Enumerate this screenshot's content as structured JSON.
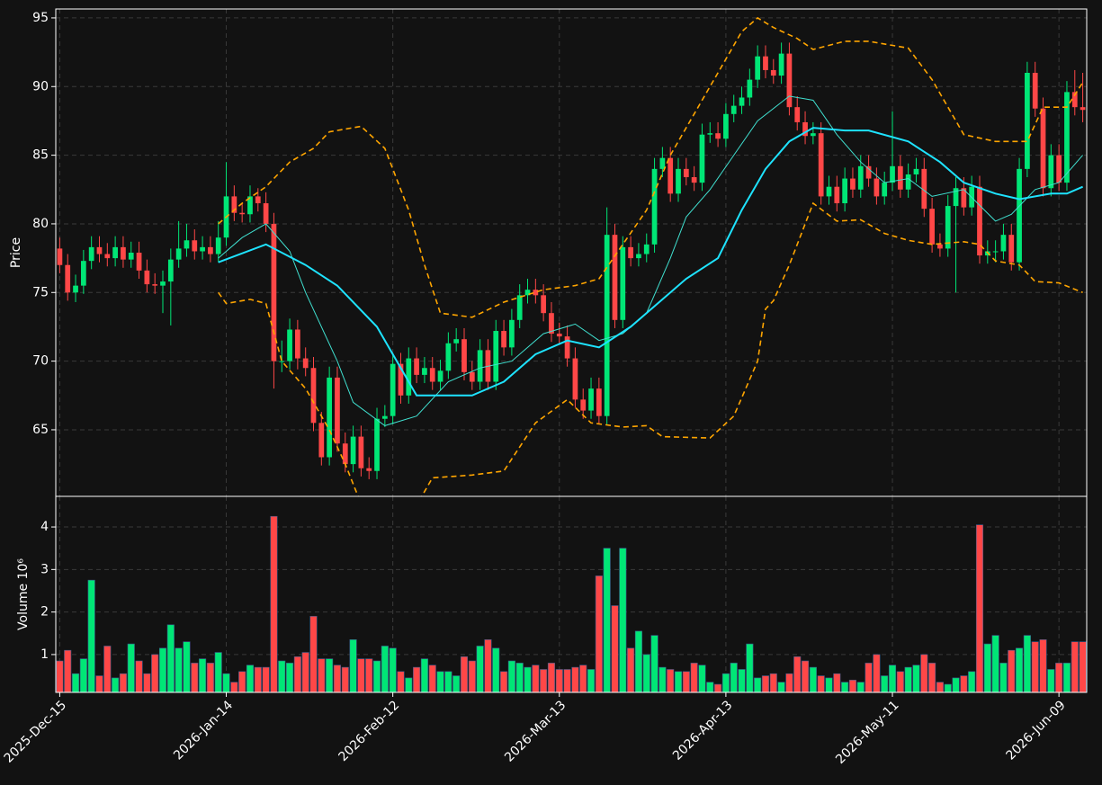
{
  "chart_data": [
    {
      "type": "candlestick",
      "ylabel": "Price",
      "xlim": [
        -0.5,
        129.5
      ],
      "ylim": [
        60.15,
        95.65
      ],
      "yticks": [
        65,
        70,
        75,
        80,
        85,
        90,
        95
      ],
      "grid": true,
      "up_color": "#00e676",
      "down_color": "#ff4747",
      "open": [
        78.2,
        77.0,
        75.0,
        75.5,
        77.3,
        78.3,
        77.8,
        77.5,
        78.3,
        77.4,
        77.9,
        76.6,
        75.6,
        75.5,
        75.8,
        77.4,
        78.2,
        78.8,
        78.0,
        78.3,
        77.8,
        79.0,
        82.0,
        80.8,
        80.7,
        82.0,
        81.5,
        80.0,
        70.0,
        70.0,
        72.3,
        70.2,
        69.5,
        65.5,
        63.0,
        68.8,
        64.0,
        62.5,
        64.5,
        62.2,
        62.0,
        65.8,
        66.0,
        69.8,
        67.5,
        70.2,
        69.0,
        69.5,
        68.5,
        69.3,
        71.3,
        71.6,
        69.2,
        68.5,
        70.8,
        68.5,
        72.2,
        71.0,
        73.0,
        74.8,
        75.2,
        74.8,
        73.5,
        72.0,
        71.8,
        70.2,
        67.2,
        66.4,
        68.0,
        66.0,
        79.2,
        73.0,
        78.3,
        77.5,
        77.8,
        78.5,
        84.0,
        84.8,
        82.2,
        84.0,
        83.4,
        83.0,
        86.5,
        86.6,
        86.2,
        88.0,
        88.6,
        89.2,
        90.5,
        92.2,
        91.2,
        90.8,
        92.4,
        88.5,
        87.4,
        86.4,
        86.6,
        82.0,
        82.7,
        81.5,
        83.3,
        82.5,
        84.2,
        83.3,
        82.0,
        83.0,
        84.2,
        82.5,
        83.6,
        84.0,
        81.1,
        78.5,
        78.2,
        81.3,
        82.6,
        81.2,
        82.7,
        77.7,
        78.0,
        78.0,
        79.2,
        77.2,
        84.0,
        91.0,
        88.4,
        82.6,
        85.0,
        83.0,
        89.6,
        88.5
      ],
      "high": [
        79.0,
        77.8,
        76.3,
        78.1,
        79.1,
        79.1,
        78.6,
        79.1,
        79.1,
        78.7,
        78.7,
        77.4,
        76.4,
        76.6,
        78.2,
        80.2,
        80.0,
        79.6,
        79.1,
        79.1,
        80.2,
        84.5,
        82.8,
        81.5,
        82.8,
        82.6,
        82.3,
        80.8,
        71.5,
        73.1,
        73.0,
        71.0,
        70.3,
        66.3,
        69.6,
        69.6,
        64.8,
        65.3,
        65.3,
        63.0,
        66.6,
        66.8,
        70.6,
        70.6,
        71.0,
        71.0,
        70.3,
        70.3,
        70.1,
        72.1,
        72.4,
        72.4,
        70.0,
        71.6,
        71.6,
        73.0,
        73.0,
        73.8,
        75.6,
        76.0,
        76.0,
        75.6,
        74.3,
        72.8,
        72.6,
        71.0,
        68.0,
        68.8,
        68.8,
        81.2,
        80.0,
        79.1,
        79.1,
        78.6,
        79.3,
        84.8,
        85.6,
        85.6,
        84.8,
        84.8,
        84.2,
        87.3,
        87.4,
        87.4,
        88.8,
        89.4,
        90.0,
        91.3,
        93.0,
        93.0,
        92.0,
        93.2,
        93.2,
        89.3,
        88.2,
        87.4,
        87.4,
        83.5,
        83.5,
        84.1,
        84.1,
        85.0,
        85.0,
        84.1,
        83.8,
        88.2,
        85.0,
        84.4,
        84.8,
        84.8,
        81.9,
        79.3,
        82.1,
        83.4,
        83.4,
        83.5,
        83.5,
        78.8,
        78.8,
        80.0,
        80.0,
        84.8,
        91.8,
        91.8,
        89.2,
        85.8,
        85.8,
        90.4,
        91.2,
        91.0
      ],
      "low": [
        76.4,
        74.4,
        74.3,
        74.9,
        76.7,
        77.2,
        76.9,
        76.9,
        76.8,
        76.8,
        76.0,
        75.0,
        74.9,
        73.5,
        72.6,
        76.8,
        77.6,
        77.4,
        77.4,
        77.2,
        77.2,
        78.4,
        80.2,
        80.1,
        80.1,
        80.9,
        79.4,
        68.0,
        69.2,
        69.4,
        69.4,
        68.9,
        64.9,
        62.4,
        62.4,
        63.4,
        61.9,
        61.9,
        61.6,
        61.4,
        61.4,
        65.2,
        65.4,
        66.9,
        66.9,
        68.4,
        68.4,
        67.9,
        67.9,
        68.7,
        70.7,
        68.6,
        67.9,
        67.9,
        67.9,
        67.9,
        70.4,
        70.4,
        72.4,
        74.2,
        74.2,
        72.9,
        71.4,
        71.2,
        69.6,
        66.6,
        65.8,
        65.8,
        65.4,
        65.4,
        72.4,
        72.4,
        76.9,
        76.9,
        77.2,
        77.9,
        83.4,
        81.6,
        81.6,
        82.8,
        82.4,
        82.4,
        85.9,
        85.6,
        85.6,
        87.4,
        88.0,
        88.6,
        89.9,
        90.6,
        90.2,
        90.2,
        87.9,
        86.8,
        85.8,
        85.8,
        81.4,
        81.4,
        80.9,
        80.9,
        81.9,
        81.9,
        82.7,
        81.4,
        81.4,
        82.4,
        81.9,
        81.9,
        83.0,
        80.5,
        77.9,
        77.6,
        77.6,
        75.0,
        80.6,
        80.6,
        77.1,
        77.1,
        77.2,
        77.4,
        76.6,
        76.6,
        83.4,
        87.8,
        82.0,
        82.0,
        82.4,
        82.4,
        87.9,
        87.4
      ],
      "close": [
        77.0,
        75.0,
        75.5,
        77.3,
        78.3,
        77.8,
        77.5,
        78.3,
        77.4,
        77.9,
        76.6,
        75.6,
        75.5,
        75.8,
        77.4,
        78.2,
        78.8,
        78.0,
        78.3,
        77.8,
        79.0,
        82.0,
        80.8,
        80.7,
        82.0,
        81.5,
        80.0,
        70.0,
        70.0,
        72.3,
        70.2,
        69.5,
        65.5,
        63.0,
        68.8,
        64.0,
        62.5,
        64.5,
        62.2,
        62.0,
        65.8,
        66.0,
        69.8,
        67.5,
        70.2,
        69.0,
        69.5,
        68.5,
        69.3,
        71.3,
        71.6,
        69.2,
        68.5,
        70.8,
        68.5,
        72.2,
        71.0,
        73.0,
        74.8,
        75.2,
        74.8,
        73.5,
        72.0,
        71.8,
        70.2,
        67.2,
        66.4,
        68.0,
        66.0,
        79.2,
        73.0,
        78.3,
        77.5,
        77.8,
        78.5,
        84.0,
        84.8,
        82.2,
        84.0,
        83.4,
        83.0,
        86.5,
        86.6,
        86.2,
        88.0,
        88.6,
        89.2,
        90.5,
        92.2,
        91.2,
        90.8,
        92.4,
        88.5,
        87.4,
        86.4,
        86.6,
        82.0,
        82.7,
        81.5,
        83.3,
        82.5,
        84.2,
        83.3,
        82.0,
        83.0,
        84.2,
        82.5,
        83.6,
        84.0,
        81.1,
        78.5,
        78.2,
        81.3,
        82.6,
        81.2,
        82.7,
        77.7,
        78.0,
        78.0,
        79.2,
        77.2,
        84.0,
        91.0,
        88.4,
        82.6,
        85.0,
        83.0,
        89.6,
        88.5,
        88.3
      ],
      "lines": [
        {
          "color": "#ffa500",
          "width": 1.6,
          "dash": "6,4",
          "x": [
            20,
            23,
            26,
            29,
            32,
            34,
            38,
            41,
            44,
            46,
            48,
            52,
            56,
            61,
            65,
            68,
            71,
            74,
            77,
            80,
            83,
            86,
            88,
            90,
            93,
            95,
            99,
            102,
            107,
            110,
            114,
            118,
            122,
            124,
            127,
            129
          ],
          "values": [
            80,
            81.5,
            82.7,
            84.5,
            85.5,
            86.7,
            87.1,
            85.5,
            81,
            77,
            73.5,
            73.2,
            74.3,
            75.2,
            75.5,
            76,
            78.5,
            81,
            85,
            88,
            91,
            94,
            95,
            94.3,
            93.5,
            92.7,
            93.3,
            93.3,
            92.8,
            90.5,
            86.5,
            86,
            86,
            88.5,
            88.5,
            90.3
          ]
        },
        {
          "color": "#ffa500",
          "width": 1.6,
          "dash": "6,4",
          "x": [
            20,
            21,
            24,
            26,
            28,
            31,
            34,
            36,
            38,
            41,
            44,
            46,
            47,
            52,
            56,
            60,
            64,
            67,
            71,
            74,
            76,
            82,
            85,
            88,
            89,
            90,
            92,
            95,
            98,
            101,
            104,
            107,
            110,
            114,
            116,
            118,
            121,
            123,
            126,
            129
          ],
          "values": [
            75,
            74.2,
            74.5,
            74.2,
            70,
            68,
            65,
            62.5,
            59.6,
            57.8,
            58.5,
            60.5,
            61.5,
            61.7,
            62,
            65.5,
            67.2,
            65.5,
            65.2,
            65.3,
            64.5,
            64.4,
            66,
            70,
            73.8,
            74.4,
            77,
            81.5,
            80.2,
            80.3,
            79.3,
            78.8,
            78.5,
            78.7,
            78.5,
            77.3,
            77,
            75.8,
            75.7,
            75
          ]
        },
        {
          "color": "#40e0d0",
          "width": 1,
          "x": [
            20,
            23,
            26,
            29,
            31,
            35,
            37,
            41,
            45,
            49,
            53,
            57,
            61,
            65,
            68,
            71,
            74,
            77,
            79,
            82,
            85,
            88,
            92,
            95,
            98,
            101,
            104,
            107,
            110,
            114,
            118,
            120,
            123,
            126,
            129
          ],
          "values": [
            77.5,
            79,
            80,
            78,
            75,
            70,
            67,
            65.3,
            66,
            68.5,
            69.5,
            70,
            72,
            72.7,
            71.5,
            72,
            73.5,
            77.5,
            80.5,
            82.5,
            85,
            87.5,
            89.3,
            89,
            86.5,
            84.5,
            83,
            83.3,
            82,
            82.5,
            80.2,
            80.7,
            82.5,
            83,
            85
          ]
        },
        {
          "color": "#1ee3ff",
          "width": 2,
          "x": [
            20,
            26,
            31,
            35,
            40,
            45,
            48,
            52,
            56,
            60,
            64,
            68,
            72,
            75,
            79,
            83,
            86,
            89,
            92,
            95,
            99,
            102,
            107,
            111,
            114,
            118,
            121,
            125,
            127,
            129
          ],
          "values": [
            77.2,
            78.5,
            77,
            75.5,
            72.5,
            67.5,
            67.5,
            67.5,
            68.5,
            70.5,
            71.5,
            71,
            72.5,
            74,
            76,
            77.5,
            81,
            84,
            86,
            87,
            86.8,
            86.8,
            86,
            84.5,
            83,
            82.2,
            81.8,
            82.2,
            82.2,
            82.7
          ]
        }
      ]
    },
    {
      "type": "bar",
      "ylabel": "Volume  10⁶",
      "xlim": [
        -0.5,
        129.5
      ],
      "ylim": [
        0.11,
        4.72
      ],
      "yticks": [
        1,
        2,
        3,
        4
      ],
      "grid": true,
      "xticks": [
        {
          "value": 0,
          "label": "2025-Dec-15"
        },
        {
          "value": 21,
          "label": "2026-Jan-14"
        },
        {
          "value": 42,
          "label": "2026-Feb-12"
        },
        {
          "value": 63,
          "label": "2026-Mar-13"
        },
        {
          "value": 84,
          "label": "2026-Apr-13"
        },
        {
          "value": 105,
          "label": "2026-May-11"
        },
        {
          "value": 126,
          "label": "2026-Jun-09"
        }
      ],
      "values": [
        0.85,
        1.1,
        0.55,
        0.9,
        2.75,
        0.5,
        1.2,
        0.45,
        0.55,
        1.25,
        0.85,
        0.55,
        1.0,
        1.15,
        1.7,
        1.15,
        1.3,
        0.8,
        0.9,
        0.8,
        1.05,
        0.55,
        0.35,
        0.6,
        0.75,
        0.7,
        0.7,
        4.25,
        0.85,
        0.8,
        0.95,
        1.05,
        1.9,
        0.9,
        0.9,
        0.75,
        0.7,
        1.35,
        0.9,
        0.9,
        0.85,
        1.2,
        1.15,
        0.6,
        0.45,
        0.7,
        0.9,
        0.75,
        0.6,
        0.6,
        0.5,
        0.95,
        0.85,
        1.2,
        1.35,
        1.15,
        0.6,
        0.85,
        0.8,
        0.7,
        0.75,
        0.65,
        0.8,
        0.65,
        0.65,
        0.7,
        0.75,
        0.65,
        2.85,
        3.5,
        2.15,
        3.5,
        1.15,
        1.55,
        1.0,
        1.45,
        0.7,
        0.65,
        0.6,
        0.6,
        0.8,
        0.75,
        0.35,
        0.3,
        0.55,
        0.8,
        0.65,
        1.25,
        0.45,
        0.5,
        0.55,
        0.35,
        0.55,
        0.95,
        0.85,
        0.7,
        0.5,
        0.45,
        0.55,
        0.35,
        0.4,
        0.35,
        0.8,
        1.0,
        0.5,
        0.75,
        0.6,
        0.7,
        0.75,
        1.0,
        0.8,
        0.35,
        0.3,
        0.45,
        0.5,
        0.6,
        4.05,
        1.25,
        1.45,
        0.8,
        1.1,
        1.15,
        1.45,
        1.3,
        1.35,
        0.65,
        0.8,
        0.8,
        1.3,
        1.3
      ]
    }
  ]
}
